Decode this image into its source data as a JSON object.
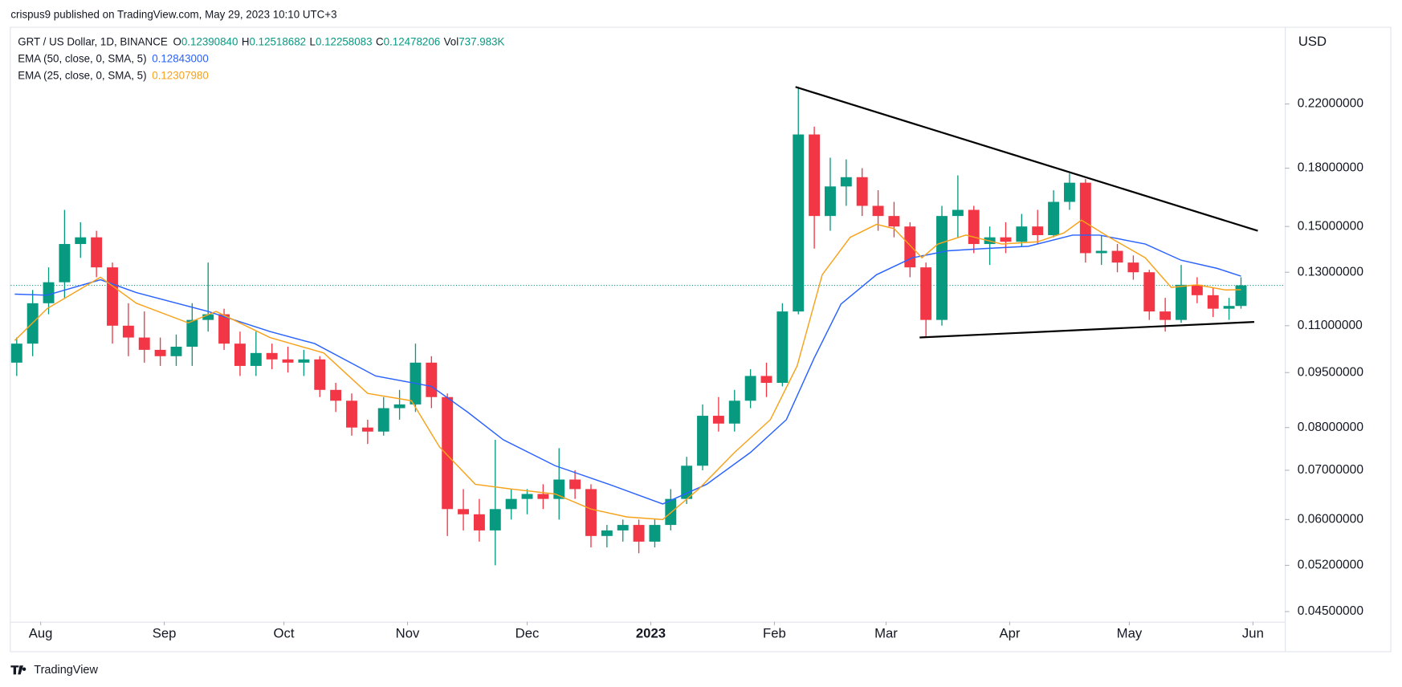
{
  "header": {
    "text": "crispus9 published on TradingView.com, May 29, 2023 10:10 UTC+3"
  },
  "chart_data": {
    "type": "candlestick",
    "title": "GRT / US Dollar, 1D, BINANCE",
    "ohlc_legend": [
      {
        "label": "O",
        "value": "0.12390840"
      },
      {
        "label": "H",
        "value": "0.12518682"
      },
      {
        "label": "L",
        "value": "0.12258083"
      },
      {
        "label": "C",
        "value": "0.12478206"
      },
      {
        "label": "Vol",
        "value": "737.983K"
      }
    ],
    "y_axis_label": "USD",
    "log_scale": true,
    "up_color": "#089981",
    "down_color": "#f23645",
    "x": [
      -6,
      -2,
      2,
      6,
      10,
      14,
      18,
      22,
      26,
      30,
      34,
      38,
      42,
      46,
      50,
      54,
      58,
      62,
      66,
      70,
      74,
      78,
      82,
      86,
      90,
      94,
      98,
      102,
      106,
      110,
      114,
      118,
      122,
      126,
      130,
      134,
      138,
      142,
      146,
      150,
      154,
      158,
      162,
      166,
      170,
      174,
      178,
      182,
      186,
      190,
      194,
      198,
      202,
      206,
      210,
      214,
      218,
      222,
      226,
      230,
      234,
      238,
      242,
      246,
      250,
      254,
      258,
      262,
      266,
      270,
      274,
      278,
      282,
      286,
      290,
      294,
      298,
      301
    ],
    "open": [
      0.098,
      0.104,
      0.118,
      0.126,
      0.142,
      0.145,
      0.132,
      0.11,
      0.106,
      0.102,
      0.1,
      0.103,
      0.112,
      0.114,
      0.104,
      0.097,
      0.101,
      0.099,
      0.098,
      0.099,
      0.09,
      0.087,
      0.08,
      0.079,
      0.085,
      0.086,
      0.098,
      0.088,
      0.062,
      0.061,
      0.058,
      0.062,
      0.064,
      0.065,
      0.064,
      0.068,
      0.066,
      0.057,
      0.058,
      0.059,
      0.056,
      0.059,
      0.064,
      0.071,
      0.083,
      0.081,
      0.087,
      0.094,
      0.092,
      0.115,
      0.2,
      0.155,
      0.17,
      0.175,
      0.16,
      0.155,
      0.15,
      0.132,
      0.112,
      0.155,
      0.158,
      0.142,
      0.145,
      0.143,
      0.15,
      0.146,
      0.162,
      0.172,
      0.138,
      0.139,
      0.134,
      0.13,
      0.115,
      0.112,
      0.125,
      0.121,
      0.116,
      0.117
    ],
    "high": [
      0.106,
      0.123,
      0.132,
      0.158,
      0.152,
      0.148,
      0.134,
      0.118,
      0.115,
      0.106,
      0.107,
      0.118,
      0.134,
      0.116,
      0.108,
      0.108,
      0.104,
      0.103,
      0.102,
      0.1,
      0.092,
      0.089,
      0.082,
      0.088,
      0.09,
      0.104,
      0.1,
      0.089,
      0.066,
      0.064,
      0.077,
      0.066,
      0.066,
      0.067,
      0.075,
      0.07,
      0.067,
      0.059,
      0.06,
      0.06,
      0.06,
      0.066,
      0.073,
      0.086,
      0.088,
      0.09,
      0.096,
      0.098,
      0.118,
      0.232,
      0.205,
      0.186,
      0.185,
      0.18,
      0.168,
      0.162,
      0.152,
      0.134,
      0.16,
      0.176,
      0.16,
      0.15,
      0.152,
      0.156,
      0.158,
      0.168,
      0.177,
      0.174,
      0.146,
      0.142,
      0.137,
      0.131,
      0.12,
      0.133,
      0.128,
      0.124,
      0.12,
      0.128
    ],
    "low": [
      0.094,
      0.1,
      0.114,
      0.12,
      0.136,
      0.128,
      0.104,
      0.1,
      0.098,
      0.097,
      0.097,
      0.097,
      0.108,
      0.102,
      0.094,
      0.094,
      0.096,
      0.095,
      0.094,
      0.088,
      0.084,
      0.078,
      0.076,
      0.078,
      0.082,
      0.084,
      0.085,
      0.057,
      0.058,
      0.056,
      0.052,
      0.06,
      0.061,
      0.062,
      0.06,
      0.064,
      0.055,
      0.055,
      0.056,
      0.054,
      0.055,
      0.058,
      0.063,
      0.07,
      0.079,
      0.079,
      0.085,
      0.088,
      0.091,
      0.114,
      0.14,
      0.148,
      0.16,
      0.155,
      0.148,
      0.145,
      0.128,
      0.106,
      0.11,
      0.145,
      0.138,
      0.133,
      0.138,
      0.141,
      0.142,
      0.145,
      0.158,
      0.134,
      0.133,
      0.13,
      0.127,
      0.112,
      0.108,
      0.111,
      0.118,
      0.113,
      0.112,
      0.116
    ],
    "close": [
      0.104,
      0.118,
      0.126,
      0.142,
      0.145,
      0.132,
      0.11,
      0.106,
      0.102,
      0.1,
      0.103,
      0.112,
      0.114,
      0.104,
      0.097,
      0.101,
      0.099,
      0.098,
      0.099,
      0.09,
      0.087,
      0.08,
      0.079,
      0.085,
      0.086,
      0.098,
      0.088,
      0.062,
      0.061,
      0.058,
      0.062,
      0.064,
      0.065,
      0.064,
      0.068,
      0.066,
      0.057,
      0.058,
      0.059,
      0.056,
      0.059,
      0.064,
      0.071,
      0.083,
      0.081,
      0.087,
      0.094,
      0.092,
      0.115,
      0.2,
      0.155,
      0.17,
      0.175,
      0.16,
      0.155,
      0.15,
      0.132,
      0.112,
      0.155,
      0.158,
      0.142,
      0.145,
      0.143,
      0.15,
      0.146,
      0.162,
      0.172,
      0.138,
      0.139,
      0.134,
      0.13,
      0.115,
      0.112,
      0.125,
      0.121,
      0.116,
      0.117,
      0.12478
    ],
    "series": [
      {
        "name": "EMA (50, close, 0, SMA, 5)",
        "color": "#2962ff",
        "legend_value": "0.12843000",
        "x": [
          -6.5,
          1.6,
          15,
          24,
          42,
          57.5,
          68.7,
          84,
          98,
          107,
          116,
          129,
          142.5,
          156,
          167,
          178,
          187,
          194,
          200.7,
          209.6,
          218.6,
          227.5,
          236.5,
          247.7,
          258.8,
          265.5,
          277,
          286,
          295,
          301
        ],
        "values": [
          0.1214,
          0.121,
          0.127,
          0.122,
          0.115,
          0.108,
          0.104,
          0.094,
          0.091,
          0.084,
          0.077,
          0.071,
          0.067,
          0.063,
          0.067,
          0.074,
          0.082,
          0.0995,
          0.1177,
          0.129,
          0.136,
          0.139,
          0.14,
          0.141,
          0.146,
          0.146,
          0.142,
          0.135,
          0.1316,
          0.12843
        ]
      },
      {
        "name": "EMA (25, close, 0, SMA, 5)",
        "color": "#f7a21b",
        "legend_value": "0.12307980",
        "x": [
          -6.5,
          1.6,
          15,
          24,
          37,
          44,
          57.5,
          71,
          82,
          93,
          100,
          109,
          118,
          129,
          138,
          147,
          156,
          165,
          174,
          183,
          189.7,
          196,
          203,
          209.6,
          214,
          221,
          225,
          232,
          241,
          250,
          256.6,
          261,
          268,
          277,
          283.5,
          290,
          297,
          301
        ],
        "values": [
          0.105,
          0.116,
          0.128,
          0.118,
          0.111,
          0.115,
          0.106,
          0.101,
          0.089,
          0.087,
          0.0753,
          0.067,
          0.066,
          0.065,
          0.062,
          0.0605,
          0.06,
          0.066,
          0.074,
          0.082,
          0.097,
          0.129,
          0.145,
          0.151,
          0.149,
          0.136,
          0.142,
          0.146,
          0.142,
          0.143,
          0.147,
          0.153,
          0.145,
          0.136,
          0.124,
          0.125,
          0.123,
          0.12308
        ]
      }
    ],
    "trendlines": [
      {
        "color": "#000000",
        "x": [
          189.3,
          305.2
        ],
        "values": [
          0.232,
          0.148
        ]
      },
      {
        "color": "#000000",
        "x": [
          220.4,
          304.3
        ],
        "values": [
          0.106,
          0.1113
        ]
      }
    ],
    "xlim": [
      -7.5,
      312
    ],
    "xticks": [
      {
        "value": 0,
        "label": "Aug"
      },
      {
        "value": 31,
        "label": "Sep"
      },
      {
        "value": 61,
        "label": "Oct"
      },
      {
        "value": 92,
        "label": "Nov"
      },
      {
        "value": 122,
        "label": "Dec"
      },
      {
        "value": 153,
        "label": "2023"
      },
      {
        "value": 184,
        "label": "Feb"
      },
      {
        "value": 212,
        "label": "Mar"
      },
      {
        "value": 243,
        "label": "Apr"
      },
      {
        "value": 273,
        "label": "May"
      },
      {
        "value": 304,
        "label": "Jun"
      }
    ],
    "ylim": [
      0.0436,
      0.28
    ],
    "yticks": [
      {
        "value": 0.22,
        "label": "0.22000000"
      },
      {
        "value": 0.18,
        "label": "0.18000000"
      },
      {
        "value": 0.15,
        "label": "0.15000000"
      },
      {
        "value": 0.13,
        "label": "0.13000000"
      },
      {
        "value": 0.11,
        "label": "0.11000000"
      },
      {
        "value": 0.095,
        "label": "0.09500000"
      },
      {
        "value": 0.08,
        "label": "0.08000000"
      },
      {
        "value": 0.07,
        "label": "0.07000000"
      },
      {
        "value": 0.06,
        "label": "0.06000000"
      },
      {
        "value": 0.052,
        "label": "0.05200000"
      },
      {
        "value": 0.045,
        "label": "0.04500000"
      }
    ]
  },
  "footer": {
    "brand": "TradingView"
  }
}
